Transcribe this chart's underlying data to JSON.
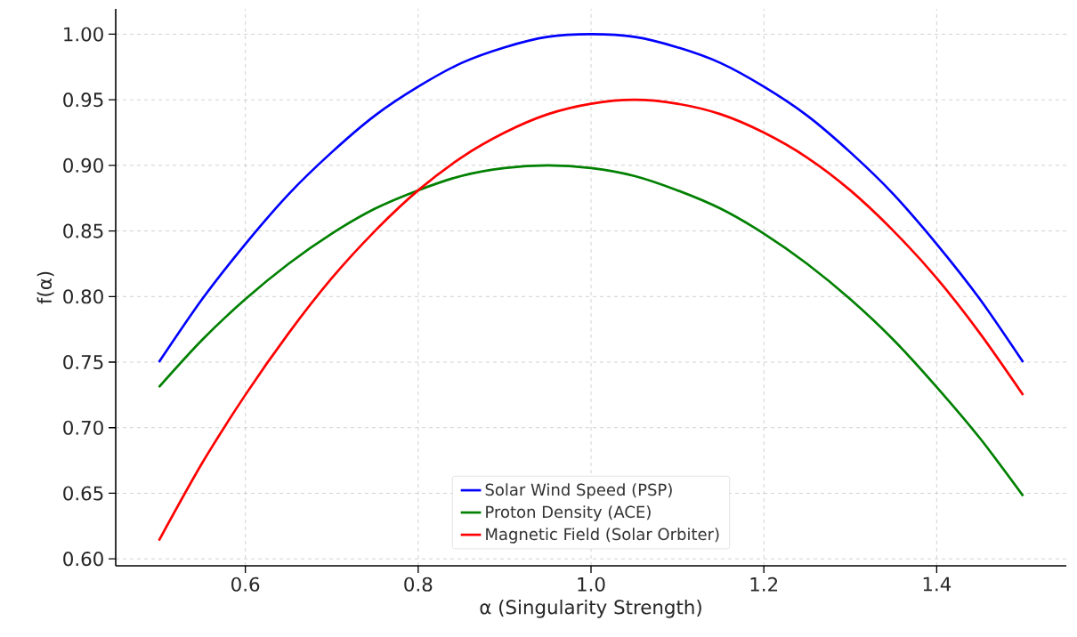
{
  "chart_data": {
    "type": "line",
    "xlabel": "α (Singularity Strength)",
    "ylabel": "f(α)",
    "x": [
      0.5,
      0.55,
      0.6,
      0.65,
      0.7,
      0.75,
      0.8,
      0.85,
      0.9,
      0.95,
      1.0,
      1.05,
      1.1,
      1.15,
      1.2,
      1.25,
      1.3,
      1.35,
      1.4,
      1.45,
      1.5
    ],
    "series": [
      {
        "name": "Solar Wind Speed (PSP)",
        "color": "#0000ff",
        "values": [
          0.75,
          0.798,
          0.84,
          0.878,
          0.91,
          0.938,
          0.96,
          0.978,
          0.99,
          0.998,
          1.0,
          0.998,
          0.99,
          0.978,
          0.96,
          0.938,
          0.91,
          0.878,
          0.84,
          0.798,
          0.75
        ]
      },
      {
        "name": "Proton Density (ACE)",
        "color": "#008000",
        "values": [
          0.731,
          0.767,
          0.798,
          0.825,
          0.848,
          0.867,
          0.881,
          0.892,
          0.898,
          0.9,
          0.898,
          0.892,
          0.881,
          0.867,
          0.848,
          0.825,
          0.798,
          0.767,
          0.731,
          0.692,
          0.648
        ]
      },
      {
        "name": "Magnetic Field (Solar Orbiter)",
        "color": "#ff0000",
        "values": [
          0.614,
          0.673,
          0.725,
          0.772,
          0.814,
          0.85,
          0.881,
          0.906,
          0.925,
          0.939,
          0.947,
          0.95,
          0.947,
          0.939,
          0.925,
          0.906,
          0.881,
          0.85,
          0.814,
          0.772,
          0.725
        ]
      }
    ],
    "xlim": [
      0.45,
      1.55
    ],
    "ylim": [
      0.5947,
      1.0193
    ],
    "xticks": [
      {
        "value": 0.6,
        "label": "0.6"
      },
      {
        "value": 0.8,
        "label": "0.8"
      },
      {
        "value": 1.0,
        "label": "1.0"
      },
      {
        "value": 1.2,
        "label": "1.2"
      },
      {
        "value": 1.4,
        "label": "1.4"
      }
    ],
    "yticks": [
      {
        "value": 0.6,
        "label": "0.60"
      },
      {
        "value": 0.65,
        "label": "0.65"
      },
      {
        "value": 0.7,
        "label": "0.70"
      },
      {
        "value": 0.75,
        "label": "0.75"
      },
      {
        "value": 0.8,
        "label": "0.80"
      },
      {
        "value": 0.85,
        "label": "0.85"
      },
      {
        "value": 0.9,
        "label": "0.90"
      },
      {
        "value": 0.95,
        "label": "0.95"
      },
      {
        "value": 1.0,
        "label": "1.00"
      }
    ],
    "grid": true,
    "legend": "bottom",
    "marker": "none",
    "line_style": "solid"
  }
}
